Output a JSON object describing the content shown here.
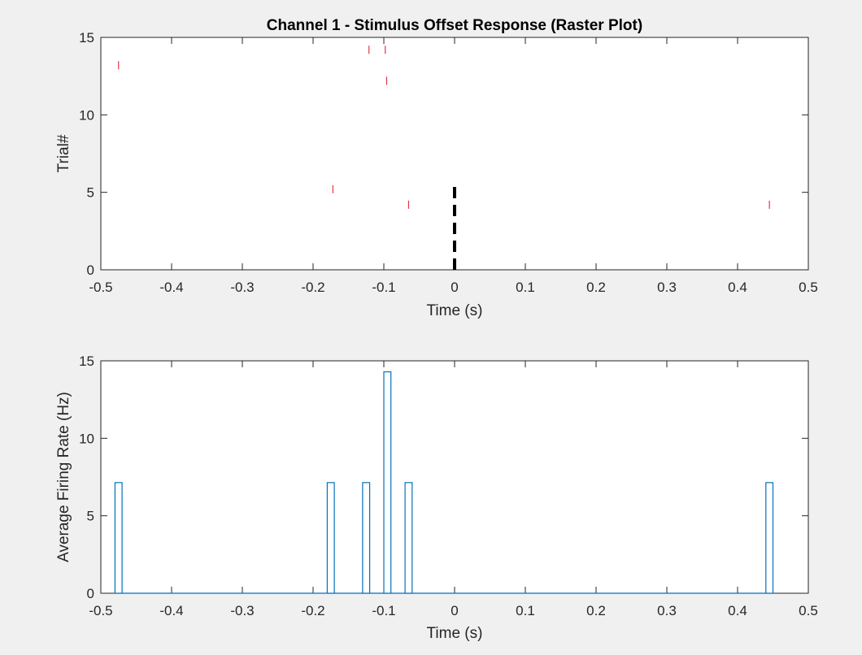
{
  "chart_data": [
    {
      "type": "scatter",
      "title": "Channel 1 - Stimulus Offset Response (Raster Plot)",
      "xlabel": "Time (s)",
      "ylabel": "Trial#",
      "xlim": [
        -0.5,
        0.5
      ],
      "ylim": [
        0,
        15
      ],
      "xticks": [
        "-0.5",
        "-0.4",
        "-0.3",
        "-0.2",
        "-0.1",
        "0",
        "0.1",
        "0.2",
        "0.3",
        "0.4",
        "0.5"
      ],
      "yticks": [
        "0",
        "5",
        "10",
        "15"
      ],
      "grid": false,
      "spike_color": "#e8334a",
      "spikes": [
        {
          "x": -0.475,
          "y": 13.2
        },
        {
          "x": -0.121,
          "y": 14.2
        },
        {
          "x": -0.098,
          "y": 14.2
        },
        {
          "x": -0.096,
          "y": 12.2
        },
        {
          "x": -0.172,
          "y": 5.2
        },
        {
          "x": -0.065,
          "y": 4.2
        },
        {
          "x": 0.445,
          "y": 4.2
        }
      ],
      "stimulus_marker": {
        "x": 0,
        "y_from": 0,
        "y_to": 5.5,
        "color": "#000000",
        "style": "dashed"
      }
    },
    {
      "type": "bar",
      "title": "",
      "xlabel": "Time (s)",
      "ylabel": "Average Firing Rate (Hz)",
      "xlim": [
        -0.5,
        0.5
      ],
      "ylim": [
        0,
        15
      ],
      "xticks": [
        "-0.5",
        "-0.4",
        "-0.3",
        "-0.2",
        "-0.1",
        "0",
        "0.1",
        "0.2",
        "0.3",
        "0.4",
        "0.5"
      ],
      "yticks": [
        "0",
        "5",
        "10",
        "15"
      ],
      "grid": false,
      "bar_color": "#0072bd",
      "bin_width": 0.01,
      "bins": [
        {
          "x0": -0.48,
          "value": 7.14
        },
        {
          "x0": -0.18,
          "value": 7.14
        },
        {
          "x0": -0.13,
          "value": 7.14
        },
        {
          "x0": -0.1,
          "value": 14.29
        },
        {
          "x0": -0.07,
          "value": 7.14
        },
        {
          "x0": 0.44,
          "value": 7.14
        }
      ]
    }
  ]
}
